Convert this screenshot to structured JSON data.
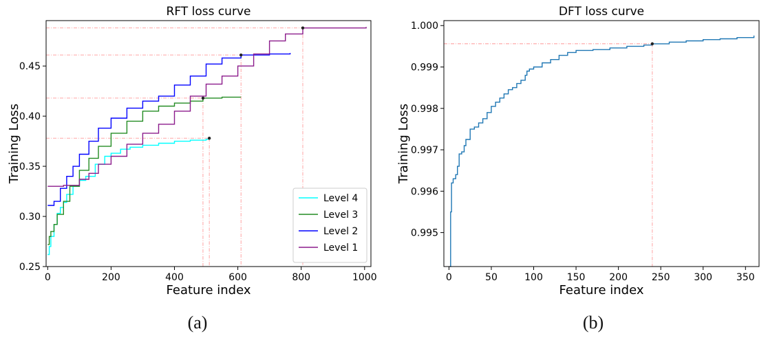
{
  "captions": {
    "a": "(a)",
    "b": "(b)"
  },
  "chart_data": [
    {
      "type": "line",
      "title": "RFT loss curve",
      "xlabel": "Feature index",
      "ylabel": "Training Loss",
      "xlim": [
        -5,
        1020
      ],
      "ylim": [
        0.25,
        0.4953
      ],
      "xticks": [
        0,
        200,
        400,
        600,
        800,
        1000
      ],
      "xtick_labels": [
        "0",
        "200",
        "400",
        "600",
        "800",
        "1000"
      ],
      "yticks": [
        0.25,
        0.3,
        0.35,
        0.4,
        0.45
      ],
      "ytick_labels": [
        "0.25",
        "0.30",
        "0.35",
        "0.40",
        "0.45"
      ],
      "legend": "lower-right",
      "series": [
        {
          "name": "Level 4",
          "color": "#00ffff",
          "x": [
            0,
            5,
            10,
            20,
            30,
            40,
            50,
            60,
            80,
            100,
            120,
            150,
            180,
            200,
            230,
            260,
            300,
            350,
            400,
            450,
            500,
            510
          ],
          "y": [
            0.262,
            0.27,
            0.28,
            0.292,
            0.303,
            0.309,
            0.314,
            0.322,
            0.33,
            0.336,
            0.34,
            0.352,
            0.36,
            0.363,
            0.367,
            0.369,
            0.371,
            0.373,
            0.375,
            0.376,
            0.377,
            0.378
          ],
          "marker": {
            "x": 510,
            "y": 0.378
          }
        },
        {
          "name": "Level 3",
          "color": "#228b22",
          "x": [
            0,
            5,
            10,
            20,
            30,
            50,
            70,
            100,
            130,
            160,
            200,
            250,
            300,
            350,
            400,
            450,
            490,
            550,
            610
          ],
          "y": [
            0.272,
            0.28,
            0.285,
            0.292,
            0.302,
            0.315,
            0.33,
            0.346,
            0.358,
            0.37,
            0.383,
            0.395,
            0.405,
            0.41,
            0.413,
            0.415,
            0.418,
            0.419,
            0.419
          ],
          "marker": {
            "x": 490,
            "y": 0.418
          }
        },
        {
          "name": "Level 2",
          "color": "#0000ff",
          "x": [
            0,
            20,
            40,
            60,
            80,
            100,
            130,
            160,
            200,
            250,
            300,
            350,
            400,
            450,
            500,
            550,
            610,
            700,
            765
          ],
          "y": [
            0.311,
            0.315,
            0.328,
            0.34,
            0.35,
            0.362,
            0.375,
            0.388,
            0.398,
            0.408,
            0.415,
            0.42,
            0.431,
            0.44,
            0.452,
            0.458,
            0.461,
            0.462,
            0.463
          ],
          "marker": {
            "x": 610,
            "y": 0.461
          }
        },
        {
          "name": "Level 1",
          "color": "#8b1a8b",
          "x": [
            0,
            50,
            100,
            130,
            160,
            200,
            250,
            300,
            350,
            400,
            450,
            500,
            550,
            600,
            650,
            700,
            750,
            805,
            900,
            1005
          ],
          "y": [
            0.33,
            0.331,
            0.337,
            0.343,
            0.352,
            0.36,
            0.372,
            0.383,
            0.392,
            0.405,
            0.42,
            0.432,
            0.44,
            0.45,
            0.462,
            0.475,
            0.482,
            0.488,
            0.488,
            0.489
          ],
          "marker": {
            "x": 805,
            "y": 0.488
          }
        }
      ]
    },
    {
      "type": "line",
      "title": "DFT loss curve",
      "xlabel": "Feature index",
      "ylabel": "Training Loss",
      "xlim": [
        -6,
        366
      ],
      "ylim": [
        0.99418,
        1.00012
      ],
      "xticks": [
        0,
        50,
        100,
        150,
        200,
        250,
        300,
        350
      ],
      "xtick_labels": [
        "0",
        "50",
        "100",
        "150",
        "200",
        "250",
        "300",
        "350"
      ],
      "yticks": [
        0.995,
        0.996,
        0.997,
        0.998,
        0.999,
        1.0
      ],
      "ytick_labels": [
        "0.995",
        "0.996",
        "0.997",
        "0.998",
        "0.999",
        "1.000"
      ],
      "series": [
        {
          "color": "#1f77b4",
          "x": [
            1,
            2,
            3,
            5,
            8,
            10,
            12,
            15,
            18,
            20,
            25,
            30,
            35,
            40,
            45,
            50,
            55,
            60,
            65,
            70,
            75,
            80,
            85,
            90,
            92,
            95,
            100,
            110,
            120,
            130,
            140,
            150,
            170,
            190,
            210,
            230,
            240,
            260,
            280,
            300,
            320,
            340,
            360
          ],
          "y": [
            0.99418,
            0.9955,
            0.9962,
            0.9963,
            0.9964,
            0.9966,
            0.9969,
            0.99695,
            0.9971,
            0.99725,
            0.9975,
            0.99755,
            0.99765,
            0.99775,
            0.9979,
            0.99805,
            0.99815,
            0.99825,
            0.99835,
            0.99845,
            0.9985,
            0.9986,
            0.99868,
            0.9988,
            0.9989,
            0.99895,
            0.999,
            0.9991,
            0.99918,
            0.99928,
            0.99935,
            0.9994,
            0.99942,
            0.99946,
            0.9995,
            0.99953,
            0.99956,
            0.9996,
            0.99963,
            0.99966,
            0.99968,
            0.99971,
            0.99976
          ],
          "marker": {
            "x": 240,
            "y": 0.99956
          }
        }
      ]
    }
  ]
}
